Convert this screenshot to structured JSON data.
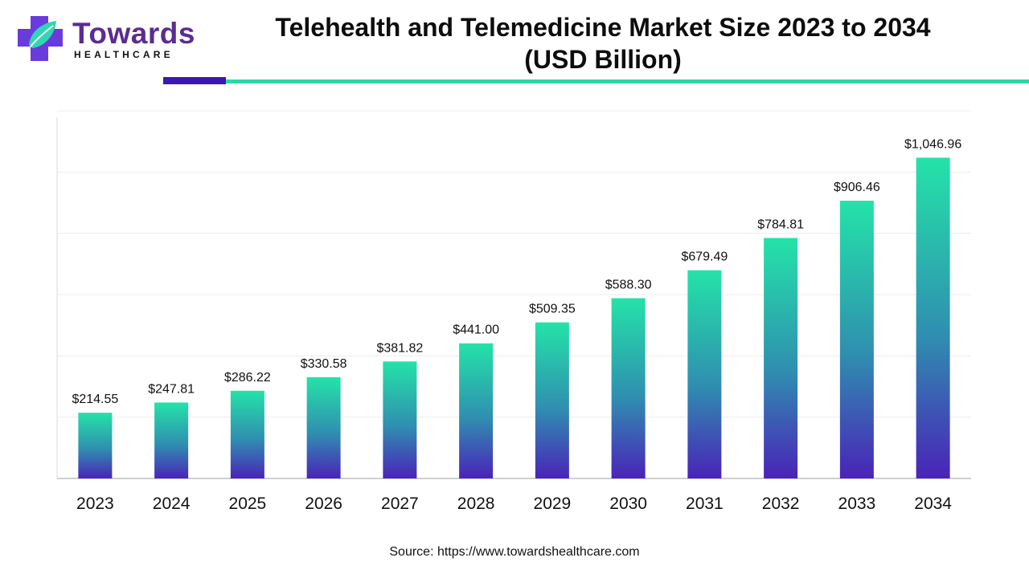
{
  "brand": {
    "name": "Towards",
    "tagline": "HEALTHCARE",
    "colors": {
      "purple": "#5a2d91",
      "cross": "#6a3bdc",
      "leaf": "#2fd6b5"
    }
  },
  "header": {
    "title_line1": "Telehealth and Telemedicine Market Size 2023 to 2034",
    "title_line2": "(USD Billion)",
    "accent_colors": {
      "primary": "#3b18b5",
      "secondary": "#2bd7a8"
    }
  },
  "chart_data": {
    "type": "bar",
    "categories": [
      "2023",
      "2024",
      "2025",
      "2026",
      "2027",
      "2028",
      "2029",
      "2030",
      "2031",
      "2032",
      "2033",
      "2034"
    ],
    "values": [
      214.55,
      247.81,
      286.22,
      330.58,
      381.82,
      441.0,
      509.35,
      588.3,
      679.49,
      784.81,
      906.46,
      1046.96
    ],
    "labels": [
      "$214.55",
      "$247.81",
      "$286.22",
      "$330.58",
      "$381.82",
      "$441.00",
      "$509.35",
      "$588.30",
      "$679.49",
      "$784.81",
      "$906.46",
      "$1,046.96"
    ],
    "ylim": [
      0,
      1200
    ],
    "grid": true,
    "legend": "none",
    "bar_gradient": {
      "top": "#24e3a8",
      "mid": "#2f8fb0",
      "bottom": "#4a23b8"
    }
  },
  "footer": {
    "source": "Source: https://www.towardshealthcare.com"
  }
}
